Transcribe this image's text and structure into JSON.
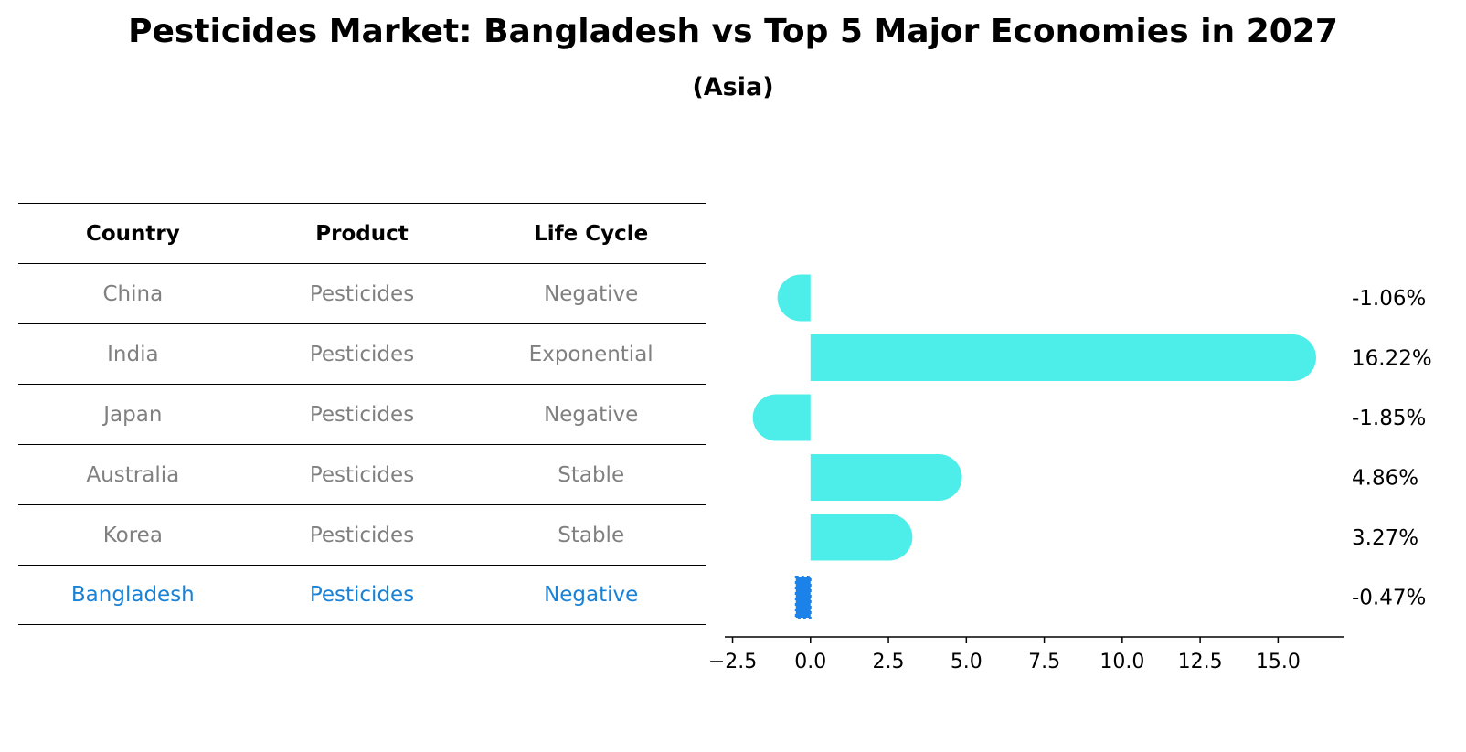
{
  "title": "Pesticides Market: Bangladesh vs Top 5 Major Economies in 2027",
  "subtitle": "(Asia)",
  "table": {
    "headers": [
      "Country",
      "Product",
      "Life Cycle"
    ],
    "rows": [
      [
        "China",
        "Pesticides",
        "Negative"
      ],
      [
        "India",
        "Pesticides",
        "Exponential"
      ],
      [
        "Japan",
        "Pesticides",
        "Negative"
      ],
      [
        "Australia",
        "Pesticides",
        "Stable"
      ],
      [
        "Korea",
        "Pesticides",
        "Stable"
      ],
      [
        "Bangladesh",
        "Pesticides",
        "Negative"
      ]
    ],
    "highlight_row": 5
  },
  "colors": {
    "bar": "#4deeea",
    "highlight": "#1a82e8",
    "muted_text": "#808080",
    "highlight_text": "#1a82d6"
  },
  "chart_data": {
    "type": "bar",
    "orientation": "horizontal",
    "categories": [
      "China",
      "India",
      "Japan",
      "Australia",
      "Korea",
      "Bangladesh"
    ],
    "values": [
      -1.06,
      16.22,
      -1.85,
      4.86,
      3.27,
      -0.47
    ],
    "value_labels": [
      "-1.06%",
      "16.22%",
      "-1.85%",
      "4.86%",
      "3.27%",
      "-0.47%"
    ],
    "highlight_index": 5,
    "xlim": [
      -2.75,
      17.1
    ],
    "xticks": [
      -2.5,
      0.0,
      2.5,
      5.0,
      7.5,
      10.0,
      12.5,
      15.0
    ],
    "xtick_labels": [
      "−2.5",
      "0.0",
      "2.5",
      "5.0",
      "7.5",
      "10.0",
      "12.5",
      "15.0"
    ],
    "grid": false
  }
}
